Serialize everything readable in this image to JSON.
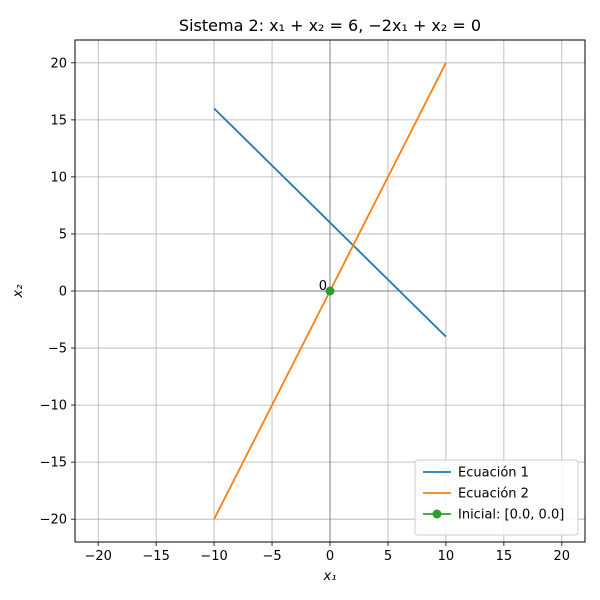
{
  "chart_data": {
    "type": "line",
    "title": "Sistema 2: x₁ + x₂ = 6, −2x₁ + x₂ = 0",
    "xlabel": "x₁",
    "ylabel": "x₂",
    "xlim": [
      -22,
      22
    ],
    "ylim": [
      -22,
      22
    ],
    "xticks": [
      -20,
      -15,
      -10,
      -5,
      0,
      5,
      10,
      15,
      20
    ],
    "yticks": [
      -20,
      -15,
      -10,
      -5,
      0,
      5,
      10,
      15,
      20
    ],
    "xtick_labels": [
      "−20",
      "−15",
      "−10",
      "−5",
      "0",
      "5",
      "10",
      "15",
      "20"
    ],
    "ytick_labels": [
      "−20",
      "−15",
      "−10",
      "−5",
      "0",
      "5",
      "10",
      "15",
      "20"
    ],
    "grid": true,
    "legend_position": "lower-right",
    "series": [
      {
        "name": "Ecuación 1",
        "color": "#1f77b4",
        "x": [
          -10,
          10
        ],
        "y": [
          16,
          -4
        ]
      },
      {
        "name": "Ecuación 2",
        "color": "#ff7f0e",
        "x": [
          -10,
          10
        ],
        "y": [
          -20,
          20
        ]
      }
    ],
    "points": [
      {
        "name": "Inicial: [0.0, 0.0]",
        "color": "#2ca02c",
        "x": 0,
        "y": 0,
        "annotation": "0"
      }
    ]
  }
}
